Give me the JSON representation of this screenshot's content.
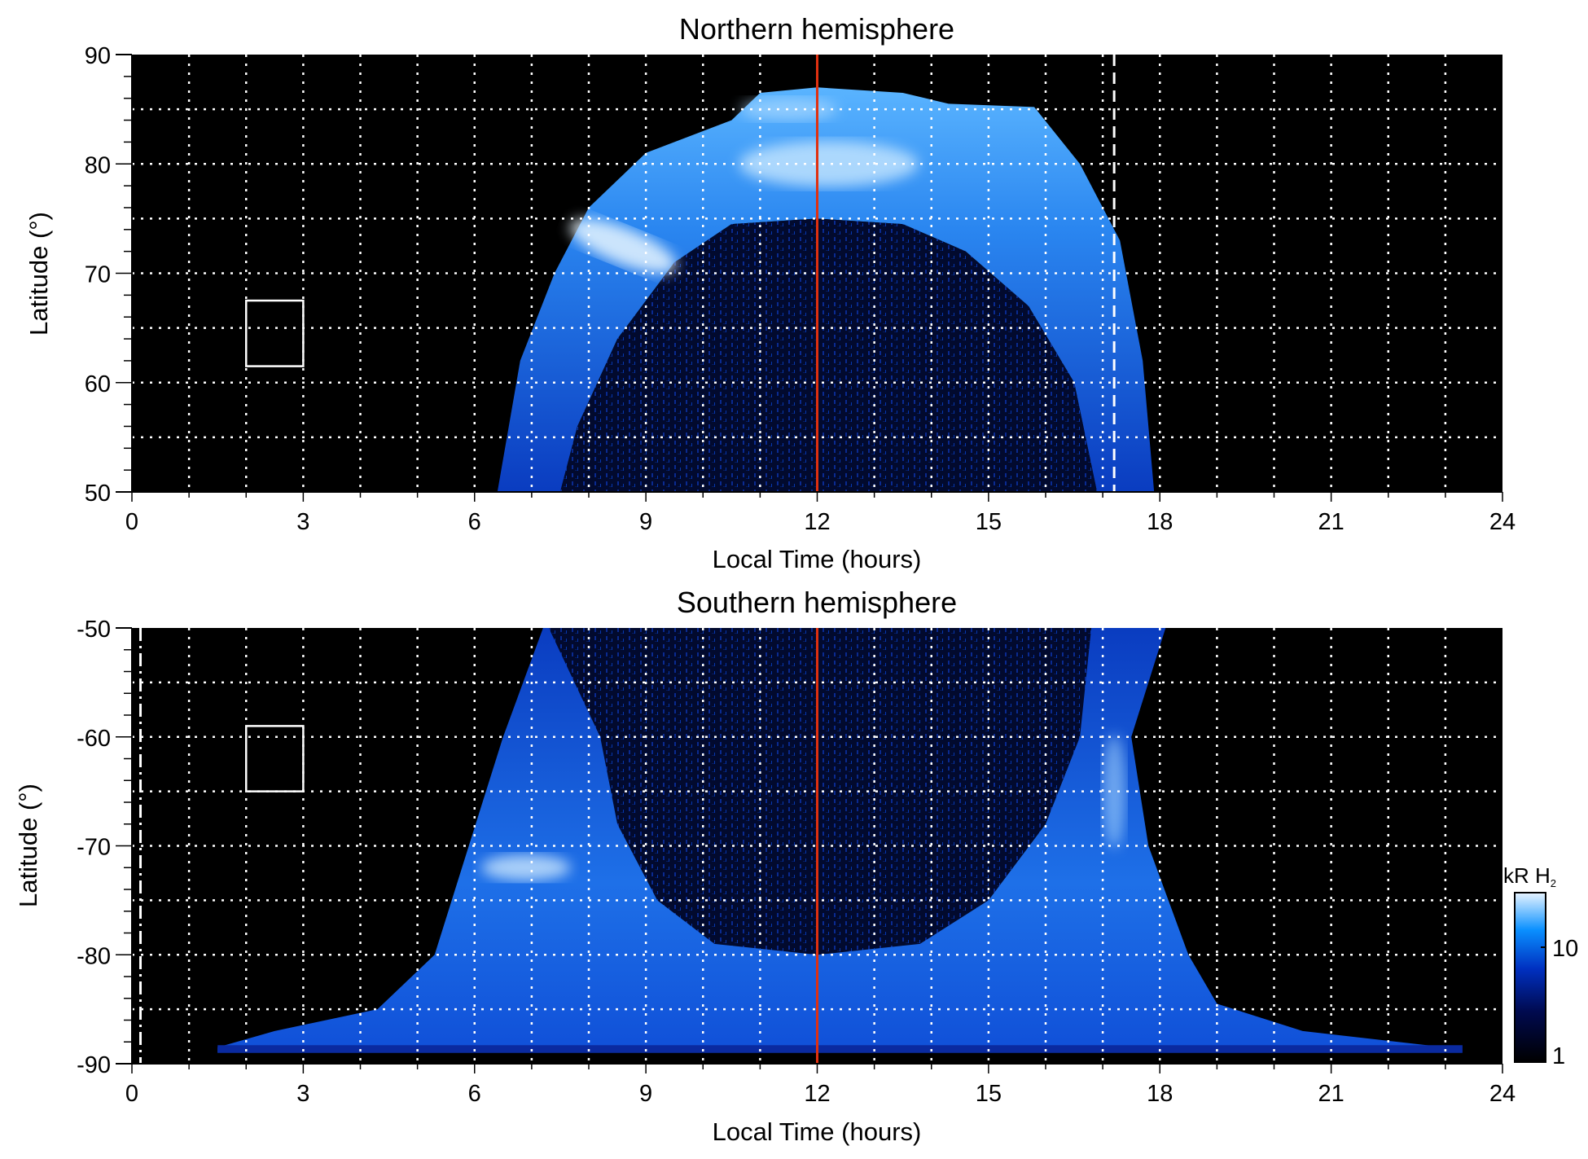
{
  "chart_data": [
    {
      "type": "heatmap",
      "title": "Northern hemisphere",
      "xlabel": "Local Time (hours)",
      "ylabel": "Latitude (°)",
      "xlim": [
        0,
        24
      ],
      "ylim": [
        50,
        90
      ],
      "xticks": [
        "0",
        "3",
        "6",
        "9",
        "12",
        "15",
        "18",
        "21",
        "24"
      ],
      "yticks": [
        "50",
        "60",
        "70",
        "80",
        "90"
      ],
      "grid": true,
      "markers": {
        "red_line_hour": 12,
        "white_dashed_hour": 17.2,
        "box": {
          "hours": [
            2,
            3
          ],
          "lat": [
            61.5,
            67.5
          ]
        }
      }
    },
    {
      "type": "heatmap",
      "title": "Southern hemisphere",
      "xlabel": "Local Time (hours)",
      "ylabel": "Latitude (°)",
      "xlim": [
        0,
        24
      ],
      "ylim": [
        -90,
        -50
      ],
      "xticks": [
        "0",
        "3",
        "6",
        "9",
        "12",
        "15",
        "18",
        "21",
        "24"
      ],
      "yticks": [
        "-90",
        "-80",
        "-70",
        "-60",
        "-50"
      ],
      "grid": true,
      "markers": {
        "red_line_hour": 12,
        "white_dashdot_hour": 0.15,
        "box": {
          "hours": [
            2,
            3
          ],
          "lat": [
            -65,
            -59
          ]
        }
      }
    }
  ],
  "colorbar": {
    "label": "kR H",
    "label_sub": "2",
    "scale": "log",
    "range": [
      1,
      25
    ],
    "tick_labels": [
      "1",
      "10"
    ],
    "colors": [
      "#000000",
      "#000a50",
      "#0030c0",
      "#0a90ff",
      "#e8f4ff"
    ]
  }
}
